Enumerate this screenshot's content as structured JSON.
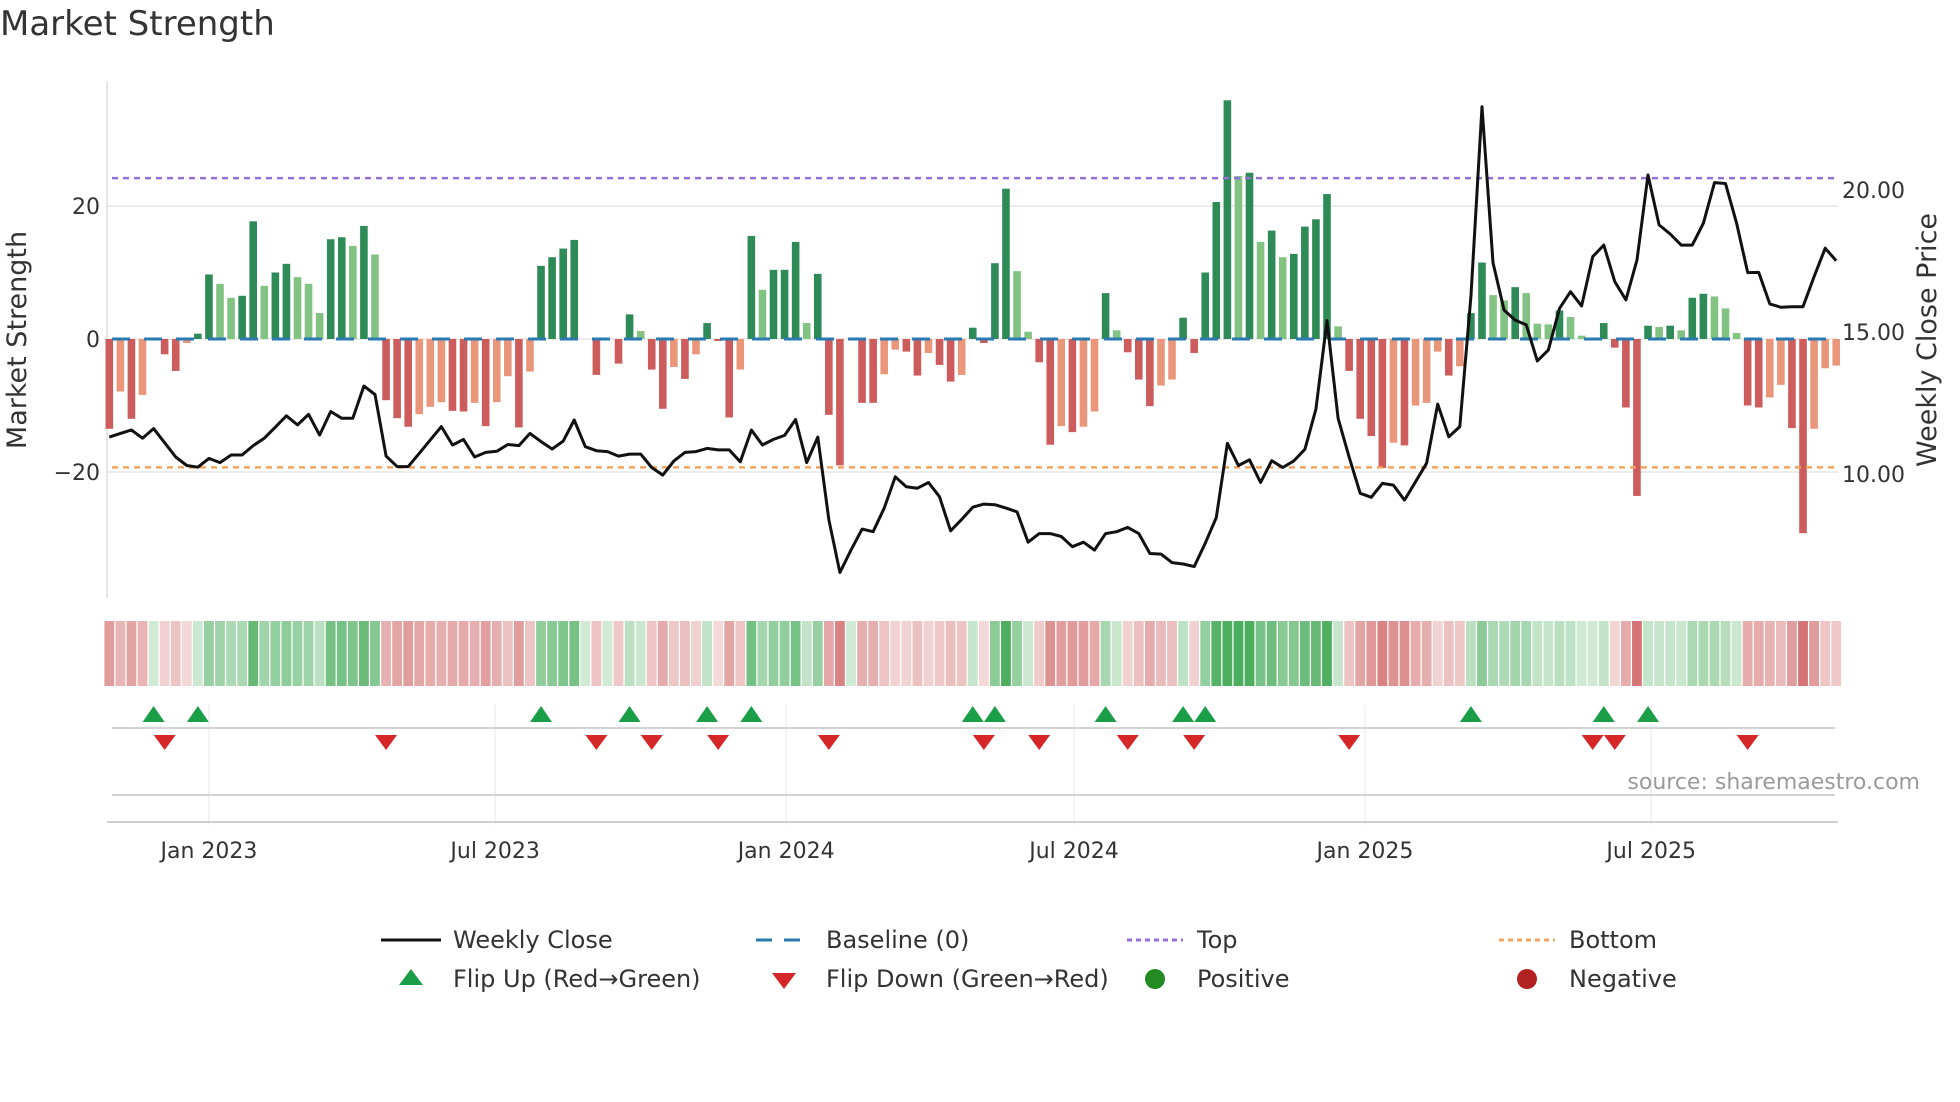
{
  "title": "Market Strength",
  "source": "source: sharemaestro.com",
  "colors": {
    "pos_strong": "#2e8b57",
    "pos_weak": "#82c282",
    "neg_strong": "#cd5c5c",
    "neg_weak": "#e9967a",
    "close_line": "#111111",
    "baseline": "#2a7ab0",
    "top": "#9370db",
    "bottom": "#f4a460",
    "flip_up": "#1a9e48",
    "flip_down": "#d62728",
    "positive": "#228b22",
    "negative": "#b22222",
    "grid": "#ececec"
  },
  "legend": {
    "weekly_close": "Weekly Close",
    "baseline": "Baseline (0)",
    "top": "Top",
    "bottom": "Bottom",
    "flip_up": "Flip Up (Red→Green)",
    "flip_down": "Flip Down (Green→Red)",
    "positive": "Positive",
    "negative": "Negative"
  },
  "chart_data": {
    "type": "bar+line",
    "title": "Market Strength",
    "ylabel_left": "Market Strength",
    "ylabel_right": "Weekly Close Price",
    "start_date": "2022-10-30",
    "frequency": "weekly",
    "left_ylim": [
      -39,
      38.8
    ],
    "left_ticks": [
      {
        "v": 20,
        "label": "20"
      },
      {
        "v": 0,
        "label": "0"
      },
      {
        "v": -20,
        "label": "−20"
      }
    ],
    "right_ticks": [
      {
        "v": 20,
        "label": "20.00"
      },
      {
        "v": 15,
        "label": "15.00"
      },
      {
        "v": 10,
        "label": "10.00"
      }
    ],
    "x_ticks": [
      {
        "date": "2023-01-01",
        "label": "Jan 2023"
      },
      {
        "date": "2023-07-01",
        "label": "Jul 2023"
      },
      {
        "date": "2024-01-01",
        "label": "Jan 2024"
      },
      {
        "date": "2024-07-01",
        "label": "Jul 2024"
      },
      {
        "date": "2025-01-01",
        "label": "Jan 2025"
      },
      {
        "date": "2025-07-01",
        "label": "Jul 2025"
      }
    ],
    "top_level": 24.2,
    "bottom_level": -19.3,
    "baseline": 0,
    "strength": [
      -13.5,
      -7.9,
      -12,
      -8.4,
      0,
      -2.3,
      -4.8,
      -0.6,
      0.8,
      9.7,
      8.3,
      6.2,
      6.5,
      17.7,
      8,
      10,
      11.3,
      9.3,
      8.3,
      3.9,
      15,
      15.3,
      14,
      17,
      12.7,
      -9.2,
      -11.9,
      -13.2,
      -11.3,
      -10.2,
      -9.5,
      -10.8,
      -10.9,
      -9.6,
      -13.1,
      -9.5,
      -5.6,
      -13.3,
      -4.9,
      11,
      12.3,
      13.6,
      14.9,
      0,
      -5.4,
      0,
      -3.7,
      3.7,
      1.2,
      -4.6,
      -10.5,
      -4.2,
      -6,
      -2.3,
      2.4,
      -0.3,
      -11.8,
      -4.6,
      15.5,
      7.4,
      10.4,
      10.4,
      14.6,
      2.4,
      9.8,
      -11.4,
      -19,
      0,
      -9.6,
      -9.6,
      -5.3,
      -1.6,
      -1.9,
      -5.5,
      -2.1,
      -3.9,
      -6.4,
      -5.4,
      1.7,
      -0.6,
      11.4,
      22.6,
      10.2,
      1.1,
      -3.5,
      -15.9,
      -13.1,
      -14,
      -13.2,
      -10.9,
      6.9,
      1.3,
      -2,
      -6.1,
      -10.1,
      -7,
      -6.1,
      3.2,
      -2.1,
      10,
      20.6,
      35.9,
      24.5,
      25,
      14.6,
      16.3,
      12.3,
      12.8,
      16.9,
      18,
      21.8,
      1.9,
      -4.8,
      -12,
      -14.6,
      -19.4,
      -15.6,
      -16,
      -10,
      -9.6,
      -1.9,
      -5.5,
      -4.1,
      3.9,
      11.5,
      6.6,
      5.8,
      7.8,
      6.9,
      2.3,
      2.2,
      4.3,
      3.3,
      0.5,
      0,
      2.4,
      -1.3,
      -10.3,
      -23.6,
      2,
      1.8,
      2,
      1.3,
      6.2,
      6.8,
      6.4,
      4.6,
      0.9,
      -10,
      -10.3,
      -8.8,
      -6.9,
      -13.4,
      -29.2,
      -13.5,
      -4.4,
      -4
    ],
    "close": [
      11.3,
      11.43,
      11.55,
      11.26,
      11.6,
      11.1,
      10.6,
      10.3,
      10.24,
      10.55,
      10.4,
      10.67,
      10.67,
      11,
      11.26,
      11.65,
      12.05,
      11.73,
      12.1,
      11.37,
      12.2,
      11.96,
      11.96,
      13.1,
      12.8,
      10.63,
      10.26,
      10.26,
      10.73,
      11.2,
      11.67,
      11.02,
      11.22,
      10.6,
      10.76,
      10.8,
      11.04,
      11,
      11.43,
      11.14,
      10.88,
      11.16,
      11.9,
      10.96,
      10.82,
      10.79,
      10.63,
      10.7,
      10.7,
      10.23,
      9.96,
      10.46,
      10.76,
      10.79,
      10.9,
      10.85,
      10.85,
      10.43,
      11.55,
      11.02,
      11.22,
      11.36,
      11.92,
      10.4,
      11.3,
      8.38,
      6.53,
      7.32,
      8.06,
      7.97,
      8.8,
      9.9,
      9.55,
      9.5,
      9.7,
      9.2,
      8.0,
      8.4,
      8.83,
      8.94,
      8.92,
      8.8,
      8.67,
      7.6,
      7.9,
      7.9,
      7.8,
      7.44,
      7.6,
      7.32,
      7.9,
      7.97,
      8.12,
      7.9,
      7.2,
      7.18,
      6.88,
      6.83,
      6.74,
      7.56,
      8.47,
      11.08,
      10.3,
      10.5,
      9.7,
      10.47,
      10.23,
      10.46,
      10.87,
      12.28,
      15.4,
      11.96,
      10.6,
      9.32,
      9.18,
      9.67,
      9.61,
      9.08,
      9.73,
      10.38,
      12.46,
      11.31,
      11.67,
      16.24,
      22.93,
      17.44,
      15.77,
      15.42,
      15.25,
      13.98,
      14.37,
      15.83,
      16.42,
      15.92,
      17.65,
      18.06,
      16.77,
      16.13,
      17.54,
      20.53,
      18.77,
      18.45,
      18.06,
      18.06,
      18.83,
      20.26,
      20.23,
      18.83,
      17.09,
      17.1,
      15.99,
      15.87,
      15.89,
      15.89,
      16.95,
      17.95,
      17.51
    ],
    "flip_up_weeks": [
      4,
      8,
      39,
      47,
      54,
      58,
      78,
      80,
      90,
      97,
      99,
      123,
      135,
      139
    ],
    "flip_down_weeks": [
      5,
      25,
      44,
      49,
      55,
      65,
      79,
      84,
      92,
      98,
      112,
      134,
      136,
      148
    ]
  }
}
